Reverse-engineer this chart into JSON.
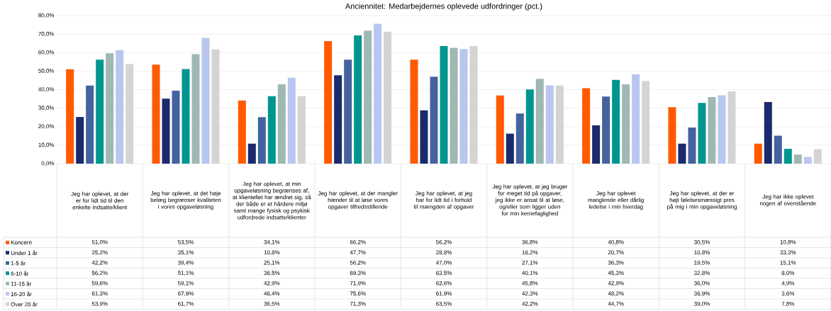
{
  "chart_data": {
    "type": "bar",
    "title": "Anciennitet: Medarbejdernes oplevede udfordringer (pct.)",
    "categories": [
      "Jeg har oplevet, at der er for lidt tid til den enkelte indsatte/klient",
      "Jeg har oplevet, at det høje belæg begrænser kvaliteten i vores opgaveløsning",
      "Jeg har oplevet, at min opgaveløsning begrænses af, at klientellet har ændret sig, så der både er et hårdere miljø samt mange fysisk og psykisk udfordrede indsatte/klienter",
      "Jeg har oplevet, at der mangler hænder til at løse vores opgaver tilfredsstillende",
      "Jeg har oplevet, at jeg har for lidt tid i forhold til mængden af opgaver",
      "Jeg har oplevet, at jeg bruger for meget tid på opgaver, jeg ikke er ansat til at løse, og/eller som ligger uden for min kernefaglighed",
      "Jeg har oplevet manglende eller dårlig ledelse i min hverdag",
      "Jeg har oplevet, at der er højt følelsesmæssigt pres på mig i min opgaveløsning",
      "Jeg har ikke oplevet nogen af ovenstående"
    ],
    "series": [
      {
        "name": "Koncern",
        "color": "#ff5a00",
        "values": [
          51.0,
          53.5,
          34.1,
          66.2,
          56.2,
          36.8,
          40.8,
          30.5,
          10.8
        ],
        "value_labels": [
          "51,0%",
          "53,5%",
          "34,1%",
          "66,2%",
          "56,2%",
          "36,8%",
          "40,8%",
          "30,5%",
          "10,8%"
        ]
      },
      {
        "name": "Under 1 år",
        "color": "#1a2a6c",
        "values": [
          25.2,
          35.1,
          10.8,
          47.7,
          28.8,
          16.2,
          20.7,
          10.8,
          33.3
        ],
        "value_labels": [
          "25,2%",
          "35,1%",
          "10,8%",
          "47,7%",
          "28,8%",
          "16,2%",
          "20,7%",
          "10,8%",
          "33,3%"
        ]
      },
      {
        "name": "1-5 år",
        "color": "#44629e",
        "values": [
          42.2,
          39.4,
          25.1,
          56.2,
          47.0,
          27.1,
          36.3,
          19.5,
          15.1
        ],
        "value_labels": [
          "42,2%",
          "39,4%",
          "25,1%",
          "56,2%",
          "47,0%",
          "27,1%",
          "36,3%",
          "19,5%",
          "15,1%"
        ]
      },
      {
        "name": "6-10 år",
        "color": "#00968f",
        "values": [
          56.2,
          51.1,
          36.5,
          69.3,
          63.5,
          40.1,
          45.3,
          32.8,
          8.0
        ],
        "value_labels": [
          "56,2%",
          "51,1%",
          "36,5%",
          "69,3%",
          "63,5%",
          "40,1%",
          "45,3%",
          "32,8%",
          "8,0%"
        ]
      },
      {
        "name": "11-15 år",
        "color": "#9fb8b4",
        "values": [
          59.6,
          59.1,
          42.9,
          71.9,
          62.6,
          45.8,
          42.9,
          36.0,
          4.9
        ],
        "value_labels": [
          "59,6%",
          "59,1%",
          "42,9%",
          "71,9%",
          "62,6%",
          "45,8%",
          "42,9%",
          "36,0%",
          "4,9%"
        ]
      },
      {
        "name": "16-20 år",
        "color": "#b8c6f0",
        "values": [
          61.3,
          67.9,
          46.4,
          75.6,
          61.9,
          42.3,
          48.2,
          36.9,
          3.6
        ],
        "value_labels": [
          "61,3%",
          "67,9%",
          "46,4%",
          "75,6%",
          "61,9%",
          "42,3%",
          "48,2%",
          "36,9%",
          "3,6%"
        ]
      },
      {
        "name": "Over 20 år",
        "color": "#d4d4d4",
        "values": [
          53.9,
          61.7,
          36.5,
          71.3,
          63.5,
          42.2,
          44.7,
          39.0,
          7.8
        ],
        "value_labels": [
          "53,9%",
          "61,7%",
          "36,5%",
          "71,3%",
          "63,5%",
          "42,2%",
          "44,7%",
          "39,0%",
          "7,8%"
        ]
      }
    ],
    "ylim": [
      0,
      80
    ],
    "yticks": [
      {
        "value": 0,
        "label": "0,0%"
      },
      {
        "value": 10,
        "label": "10,0%"
      },
      {
        "value": 20,
        "label": "20,0%"
      },
      {
        "value": 30,
        "label": "30,0%"
      },
      {
        "value": 40,
        "label": "40,0%"
      },
      {
        "value": 50,
        "label": "50,0%"
      },
      {
        "value": 60,
        "label": "60,0%"
      },
      {
        "value": 70,
        "label": "70,0%"
      },
      {
        "value": 80,
        "label": "80,0%"
      }
    ],
    "grid": "y",
    "legend": "bottom"
  }
}
